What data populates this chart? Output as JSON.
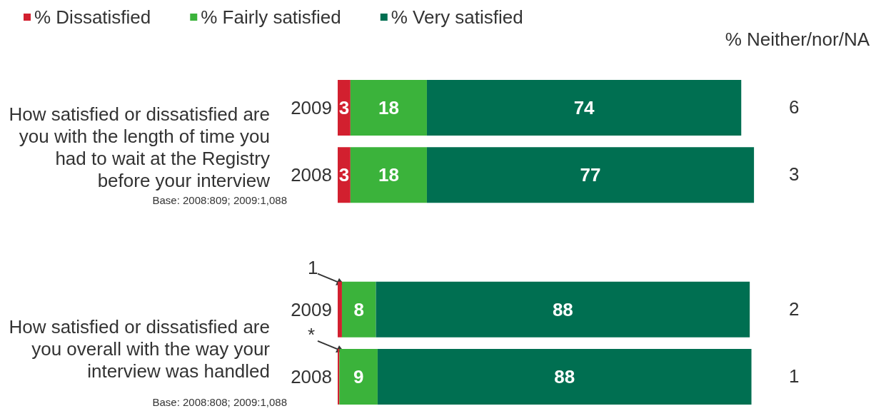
{
  "chart_data": {
    "type": "bar",
    "orientation": "horizontal",
    "stacked": true,
    "categories": [
      "2009",
      "2008",
      null,
      "2009",
      "2008"
    ],
    "series": [
      {
        "name": "% Dissatisfied",
        "color": "#d2202f",
        "values": [
          3,
          3,
          null,
          1,
          0.4
        ],
        "value_labels": [
          "3",
          "3",
          null,
          "1",
          "*"
        ]
      },
      {
        "name": "% Fairly satisfied",
        "color": "#3bb33b",
        "values": [
          18,
          18,
          null,
          8,
          9
        ],
        "value_labels": [
          "18",
          "18",
          null,
          "8",
          "9"
        ]
      },
      {
        "name": "% Very satisfied",
        "color": "#006f51",
        "values": [
          74,
          77,
          null,
          88,
          88
        ],
        "value_labels": [
          "74",
          "77",
          null,
          "88",
          "88"
        ]
      }
    ],
    "tick_labels": "y",
    "legend": "top left",
    "annotations": [
      "How satisfied or dissatisfied are you with the length of time you had to wait at the Registry before your interview",
      "Base: 2008:809; 2009:1,088",
      "How satisfied or dissatisfied are you overall with the way your interview was handled",
      "Base: 2008:808; 2009:1,088",
      "% Neither/nor/NA",
      "6",
      "3",
      "2",
      "1"
    ]
  }
}
